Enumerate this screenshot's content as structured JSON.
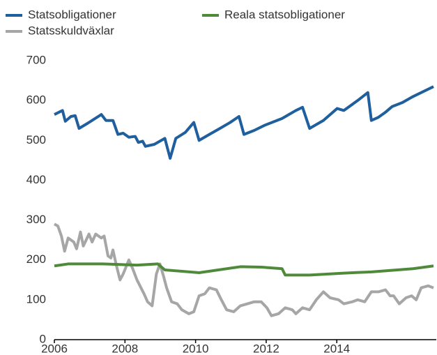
{
  "chart_data": {
    "type": "line",
    "xlim": [
      2006,
      2016.74
    ],
    "xticks": [
      2006,
      2008,
      2010,
      2012,
      2014
    ],
    "ylim": [
      0,
      700
    ],
    "yticks": [
      0,
      100,
      200,
      300,
      400,
      500,
      600,
      700
    ],
    "series": [
      {
        "name": "Statsobligationer",
        "color": "#1f5f9e",
        "x": [
          2006.0,
          2006.23,
          2006.31,
          2006.47,
          2006.59,
          2006.7,
          2006.98,
          2007.33,
          2007.46,
          2007.66,
          2007.8,
          2007.95,
          2008.11,
          2008.29,
          2008.38,
          2008.5,
          2008.58,
          2008.83,
          2009.13,
          2009.28,
          2009.44,
          2009.71,
          2009.95,
          2010.1,
          2010.39,
          2010.69,
          2010.98,
          2011.23,
          2011.37,
          2011.66,
          2011.96,
          2012.45,
          2012.84,
          2013.03,
          2013.23,
          2013.62,
          2014.01,
          2014.2,
          2014.59,
          2014.88,
          2014.98,
          2015.18,
          2015.37,
          2015.57,
          2015.86,
          2016.16,
          2016.74
        ],
        "values": [
          565,
          575,
          548,
          560,
          562,
          530,
          545,
          565,
          550,
          550,
          515,
          518,
          508,
          510,
          495,
          498,
          485,
          490,
          505,
          455,
          505,
          520,
          545,
          500,
          515,
          530,
          545,
          560,
          515,
          525,
          538,
          555,
          575,
          583,
          530,
          550,
          580,
          575,
          600,
          620,
          550,
          558,
          570,
          585,
          595,
          610,
          635
        ]
      },
      {
        "name": "Reala statsobligationer",
        "color": "#4e8a3a",
        "x": [
          2006.0,
          2006.39,
          2007.37,
          2008.34,
          2008.93,
          2009.13,
          2010.1,
          2011.27,
          2011.86,
          2012.45,
          2012.54,
          2013.23,
          2014.2,
          2014.98,
          2016.16,
          2016.74
        ],
        "values": [
          185,
          190,
          190,
          187,
          190,
          175,
          168,
          183,
          182,
          178,
          162,
          162,
          167,
          170,
          178,
          185
        ]
      },
      {
        "name": "Statsskuldväxlar",
        "color": "#a6a6a6",
        "x": [
          2006.0,
          2006.1,
          2006.2,
          2006.29,
          2006.39,
          2006.55,
          2006.63,
          2006.74,
          2006.82,
          2006.98,
          2007.07,
          2007.17,
          2007.33,
          2007.41,
          2007.52,
          2007.6,
          2007.66,
          2007.76,
          2007.86,
          2007.95,
          2008.11,
          2008.21,
          2008.34,
          2008.54,
          2008.64,
          2008.77,
          2008.89,
          2008.99,
          2009.09,
          2009.18,
          2009.32,
          2009.48,
          2009.61,
          2009.81,
          2009.95,
          2010.1,
          2010.26,
          2010.39,
          2010.59,
          2010.73,
          2010.88,
          2011.08,
          2011.27,
          2011.47,
          2011.66,
          2011.86,
          2012.02,
          2012.15,
          2012.35,
          2012.54,
          2012.74,
          2012.84,
          2013.03,
          2013.23,
          2013.42,
          2013.62,
          2013.81,
          2014.05,
          2014.2,
          2014.44,
          2014.59,
          2014.79,
          2014.98,
          2015.18,
          2015.38,
          2015.51,
          2015.61,
          2015.77,
          2015.96,
          2016.12,
          2016.25,
          2016.39,
          2016.59,
          2016.74
        ],
        "values": [
          290,
          285,
          260,
          222,
          255,
          245,
          228,
          270,
          235,
          265,
          245,
          265,
          255,
          260,
          210,
          205,
          225,
          185,
          150,
          165,
          200,
          180,
          150,
          115,
          95,
          85,
          165,
          190,
          160,
          130,
          95,
          90,
          75,
          65,
          70,
          110,
          115,
          130,
          125,
          100,
          75,
          70,
          85,
          90,
          95,
          95,
          80,
          60,
          65,
          80,
          75,
          65,
          80,
          75,
          100,
          120,
          105,
          100,
          90,
          95,
          100,
          95,
          120,
          120,
          125,
          110,
          110,
          90,
          105,
          110,
          100,
          130,
          135,
          130
        ]
      }
    ]
  }
}
